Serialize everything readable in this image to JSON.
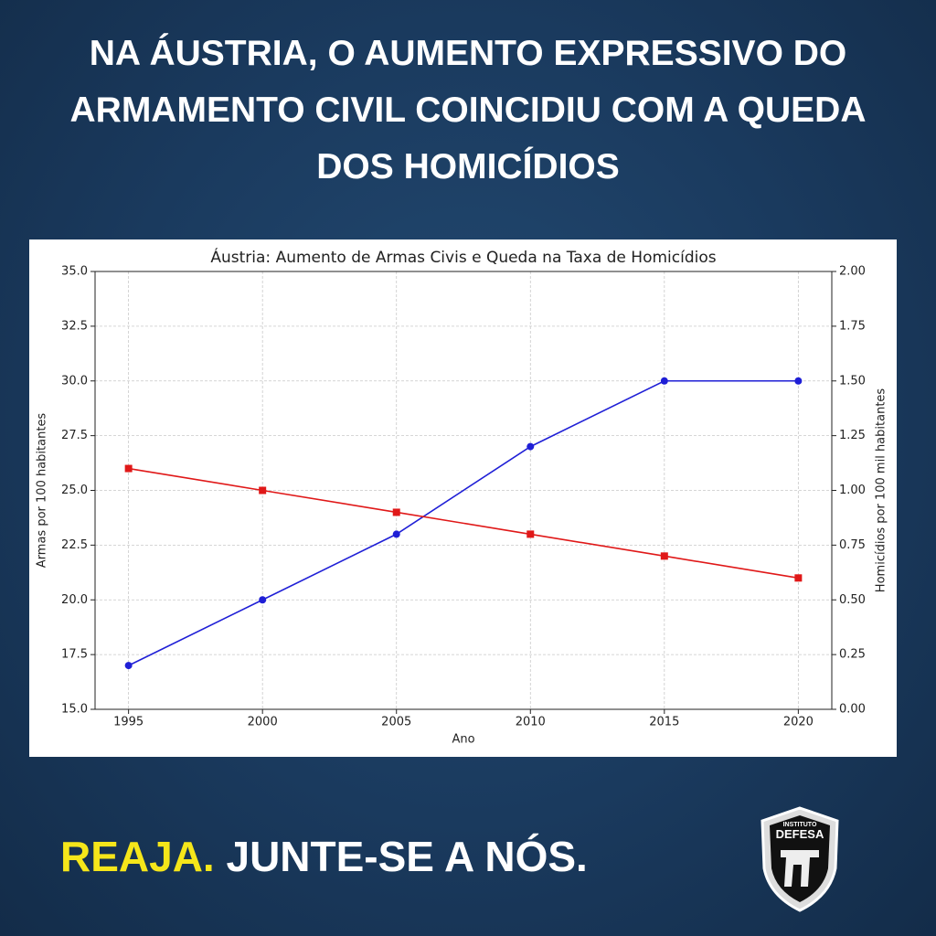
{
  "header": {
    "title_lines": [
      "NA ÁUSTRIA, O AUMENTO EXPRESSIVO DO",
      "ARMAMENTO CIVIL COINCIDIU COM A QUEDA",
      "DOS HOMICÍDIOS"
    ]
  },
  "chart_data": {
    "type": "line",
    "title": "Áustria: Aumento de Armas Civis e Queda na Taxa de Homicídios",
    "x_label": "Ano",
    "y_label": "Armas por 100 habitantes",
    "y2_label": "Homicídios por 100 mil habitantes",
    "x": [
      1995,
      2000,
      2005,
      2010,
      2015,
      2020
    ],
    "series": [
      {
        "name": "Armas por 100 habitantes",
        "color": "#1f1fd6",
        "marker": "circle",
        "values": [
          17,
          20,
          23,
          27,
          30,
          30
        ]
      },
      {
        "name": "Homicídios por 100 mil habitantes",
        "color": "#e01818",
        "marker": "square",
        "axis": "y2",
        "values": [
          1.1,
          1.0,
          0.9,
          0.8,
          0.7,
          0.6
        ]
      }
    ],
    "xlim": [
      1993.75,
      2021.25
    ],
    "xticks": [
      1995,
      2000,
      2005,
      2010,
      2015,
      2020
    ],
    "ylim": [
      15,
      35
    ],
    "yticks": [
      {
        "value": 15,
        "label": "15.0"
      },
      {
        "value": 17.5,
        "label": "17.5"
      },
      {
        "value": 20,
        "label": "20.0"
      },
      {
        "value": 22.5,
        "label": "22.5"
      },
      {
        "value": 25,
        "label": "25.0"
      },
      {
        "value": 27.5,
        "label": "27.5"
      },
      {
        "value": 30,
        "label": "30.0"
      },
      {
        "value": 32.5,
        "label": "32.5"
      },
      {
        "value": 35,
        "label": "35.0"
      }
    ],
    "y2lim": [
      0,
      2
    ],
    "y2ticks": [
      {
        "value": 0,
        "label": "0.00"
      },
      {
        "value": 0.25,
        "label": "0.25"
      },
      {
        "value": 0.5,
        "label": "0.50"
      },
      {
        "value": 0.75,
        "label": "0.75"
      },
      {
        "value": 1,
        "label": "1.00"
      },
      {
        "value": 1.25,
        "label": "1.25"
      },
      {
        "value": 1.5,
        "label": "1.50"
      },
      {
        "value": 1.75,
        "label": "1.75"
      },
      {
        "value": 2,
        "label": "2.00"
      }
    ],
    "grid": true
  },
  "footer": {
    "highlight": "REAJA.",
    "text": "JUNTE-SE A NÓS."
  },
  "logo": {
    "top": "INSTITUTO",
    "name": "DEFESA"
  }
}
